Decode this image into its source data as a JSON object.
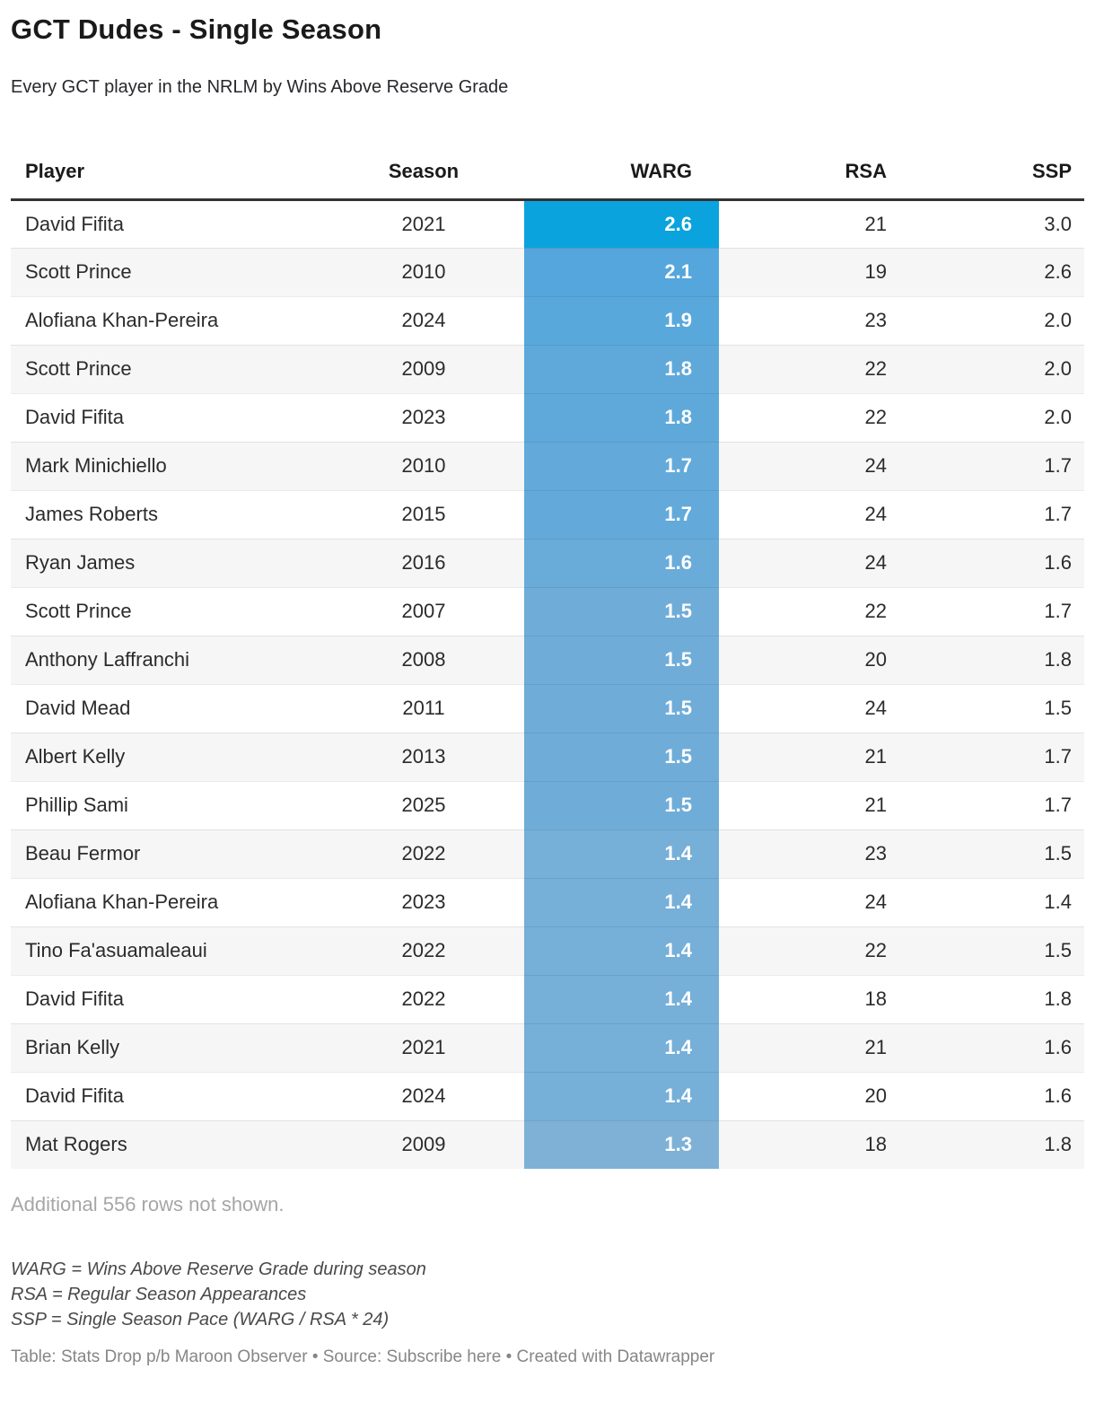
{
  "header": {
    "title": "GCT Dudes - Single Season",
    "subtitle": "Every GCT player in the NRLM by Wins Above Reserve Grade"
  },
  "table": {
    "columns": [
      {
        "label": "Player",
        "align": "left"
      },
      {
        "label": "Season",
        "align": "center"
      },
      {
        "label": "WARG",
        "align": "right"
      },
      {
        "label": "RSA",
        "align": "right"
      },
      {
        "label": "SSP",
        "align": "right"
      }
    ],
    "rows": [
      {
        "player": "David Fifita",
        "season": "2021",
        "warg": "2.6",
        "rsa": "21",
        "ssp": "3.0",
        "warg_color": "#0ba3dd"
      },
      {
        "player": "Scott Prince",
        "season": "2010",
        "warg": "2.1",
        "rsa": "19",
        "ssp": "2.6",
        "warg_color": "#54a6dc"
      },
      {
        "player": "Alofiana Khan-Pereira",
        "season": "2024",
        "warg": "1.9",
        "rsa": "23",
        "ssp": "2.0",
        "warg_color": "#59a8db"
      },
      {
        "player": "Scott Prince",
        "season": "2009",
        "warg": "1.8",
        "rsa": "22",
        "ssp": "2.0",
        "warg_color": "#5ea9da"
      },
      {
        "player": "David Fifita",
        "season": "2023",
        "warg": "1.8",
        "rsa": "22",
        "ssp": "2.0",
        "warg_color": "#5ea9da"
      },
      {
        "player": "Mark Minichiello",
        "season": "2010",
        "warg": "1.7",
        "rsa": "24",
        "ssp": "1.7",
        "warg_color": "#63aada"
      },
      {
        "player": "James Roberts",
        "season": "2015",
        "warg": "1.7",
        "rsa": "24",
        "ssp": "1.7",
        "warg_color": "#63aada"
      },
      {
        "player": "Ryan James",
        "season": "2016",
        "warg": "1.6",
        "rsa": "24",
        "ssp": "1.6",
        "warg_color": "#69abd9"
      },
      {
        "player": "Scott Prince",
        "season": "2007",
        "warg": "1.5",
        "rsa": "22",
        "ssp": "1.7",
        "warg_color": "#6fadd8"
      },
      {
        "player": "Anthony Laffranchi",
        "season": "2008",
        "warg": "1.5",
        "rsa": "20",
        "ssp": "1.8",
        "warg_color": "#6fadd8"
      },
      {
        "player": "David Mead",
        "season": "2011",
        "warg": "1.5",
        "rsa": "24",
        "ssp": "1.5",
        "warg_color": "#6fadd8"
      },
      {
        "player": "Albert Kelly",
        "season": "2013",
        "warg": "1.5",
        "rsa": "21",
        "ssp": "1.7",
        "warg_color": "#6fadd8"
      },
      {
        "player": "Phillip Sami",
        "season": "2025",
        "warg": "1.5",
        "rsa": "21",
        "ssp": "1.7",
        "warg_color": "#6fadd8"
      },
      {
        "player": "Beau Fermor",
        "season": "2022",
        "warg": "1.4",
        "rsa": "23",
        "ssp": "1.5",
        "warg_color": "#76afd7"
      },
      {
        "player": "Alofiana Khan-Pereira",
        "season": "2023",
        "warg": "1.4",
        "rsa": "24",
        "ssp": "1.4",
        "warg_color": "#76afd7"
      },
      {
        "player": "Tino Fa'asuamaleaui",
        "season": "2022",
        "warg": "1.4",
        "rsa": "22",
        "ssp": "1.5",
        "warg_color": "#76afd7"
      },
      {
        "player": "David Fifita",
        "season": "2022",
        "warg": "1.4",
        "rsa": "18",
        "ssp": "1.8",
        "warg_color": "#76afd7"
      },
      {
        "player": "Brian Kelly",
        "season": "2021",
        "warg": "1.4",
        "rsa": "21",
        "ssp": "1.6",
        "warg_color": "#76afd7"
      },
      {
        "player": "David Fifita",
        "season": "2024",
        "warg": "1.4",
        "rsa": "20",
        "ssp": "1.6",
        "warg_color": "#76afd7"
      },
      {
        "player": "Mat Rogers",
        "season": "2009",
        "warg": "1.3",
        "rsa": "18",
        "ssp": "1.8",
        "warg_color": "#7eb1d5"
      }
    ]
  },
  "footer": {
    "more_rows_note": "Additional 556 rows not shown.",
    "footnotes": [
      "WARG = Wins Above Reserve Grade during season",
      "RSA = Regular Season Appearances",
      "SSP = Single Season Pace (WARG / RSA * 24)"
    ],
    "attribution": {
      "prefix": "Table: Stats Drop p/b Maroon Observer • Source: ",
      "source_link": "Subscribe here",
      "suffix": " • Created with Datawrapper"
    }
  },
  "colors": {
    "header_border": "#333333",
    "row_stripe": "#f6f6f6",
    "row_divider": "rgba(0,0,0,0.08)",
    "warg_text": "#ffffff",
    "warg_max_blue": "#0ba3dd",
    "warg_base_blue": "#6fadd8"
  },
  "chart_data": {
    "type": "table",
    "title": "GCT Dudes - Single Season",
    "subtitle": "Every GCT player in the NRLM by Wins Above Reserve Grade",
    "columns": [
      "Player",
      "Season",
      "WARG",
      "RSA",
      "SSP"
    ],
    "heatmap_column": "WARG",
    "rows": [
      [
        "David Fifita",
        2021,
        2.6,
        21,
        3.0
      ],
      [
        "Scott Prince",
        2010,
        2.1,
        19,
        2.6
      ],
      [
        "Alofiana Khan-Pereira",
        2024,
        1.9,
        23,
        2.0
      ],
      [
        "Scott Prince",
        2009,
        1.8,
        22,
        2.0
      ],
      [
        "David Fifita",
        2023,
        1.8,
        22,
        2.0
      ],
      [
        "Mark Minichiello",
        2010,
        1.7,
        24,
        1.7
      ],
      [
        "James Roberts",
        2015,
        1.7,
        24,
        1.7
      ],
      [
        "Ryan James",
        2016,
        1.6,
        24,
        1.6
      ],
      [
        "Scott Prince",
        2007,
        1.5,
        22,
        1.7
      ],
      [
        "Anthony Laffranchi",
        2008,
        1.5,
        20,
        1.8
      ],
      [
        "David Mead",
        2011,
        1.5,
        24,
        1.5
      ],
      [
        "Albert Kelly",
        2013,
        1.5,
        21,
        1.7
      ],
      [
        "Phillip Sami",
        2025,
        1.5,
        21,
        1.7
      ],
      [
        "Beau Fermor",
        2022,
        1.4,
        23,
        1.5
      ],
      [
        "Alofiana Khan-Pereira",
        2023,
        1.4,
        24,
        1.4
      ],
      [
        "Tino Fa'asuamaleaui",
        2022,
        1.4,
        22,
        1.5
      ],
      [
        "David Fifita",
        2022,
        1.4,
        18,
        1.8
      ],
      [
        "Brian Kelly",
        2021,
        1.4,
        21,
        1.6
      ],
      [
        "David Fifita",
        2024,
        1.4,
        20,
        1.6
      ],
      [
        "Mat Rogers",
        2009,
        1.3,
        18,
        1.8
      ]
    ],
    "notes": [
      "Additional 556 rows not shown.",
      "WARG = Wins Above Reserve Grade during season",
      "RSA = Regular Season Appearances",
      "SSP = Single Season Pace (WARG / RSA * 24)"
    ]
  }
}
